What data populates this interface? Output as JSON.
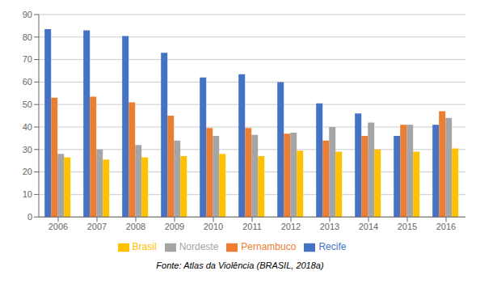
{
  "chart_data": {
    "type": "bar",
    "categories": [
      "2006",
      "2007",
      "2008",
      "2009",
      "2010",
      "2011",
      "2012",
      "2013",
      "2014",
      "2015",
      "2016"
    ],
    "series": [
      {
        "name": "Recife",
        "color": "#4472C4",
        "values": [
          83.5,
          83.0,
          80.5,
          73.0,
          62.0,
          63.5,
          60.0,
          50.5,
          46.0,
          36.0,
          41.0
        ]
      },
      {
        "name": "Pernambuco",
        "color": "#ED7D31",
        "values": [
          53.0,
          53.5,
          51.0,
          45.0,
          39.5,
          39.5,
          37.0,
          34.0,
          36.0,
          41.0,
          47.0
        ]
      },
      {
        "name": "Nordeste",
        "color": "#A5A5A5",
        "values": [
          28.0,
          30.0,
          32.0,
          34.0,
          36.0,
          36.5,
          37.5,
          40.0,
          42.0,
          41.0,
          44.0
        ]
      },
      {
        "name": "Brasil",
        "color": "#FFC000",
        "values": [
          26.5,
          25.5,
          26.5,
          27.0,
          28.0,
          27.0,
          29.5,
          29.0,
          30.0,
          29.0,
          30.5
        ]
      }
    ],
    "ylim": [
      0,
      90
    ],
    "yticks": [
      0,
      10,
      20,
      30,
      40,
      50,
      60,
      70,
      80,
      90
    ],
    "grid": true,
    "legend": "bottom",
    "annotations": [
      "Fonte: Atlas da Violência (BRASIL, 2018a)"
    ]
  }
}
